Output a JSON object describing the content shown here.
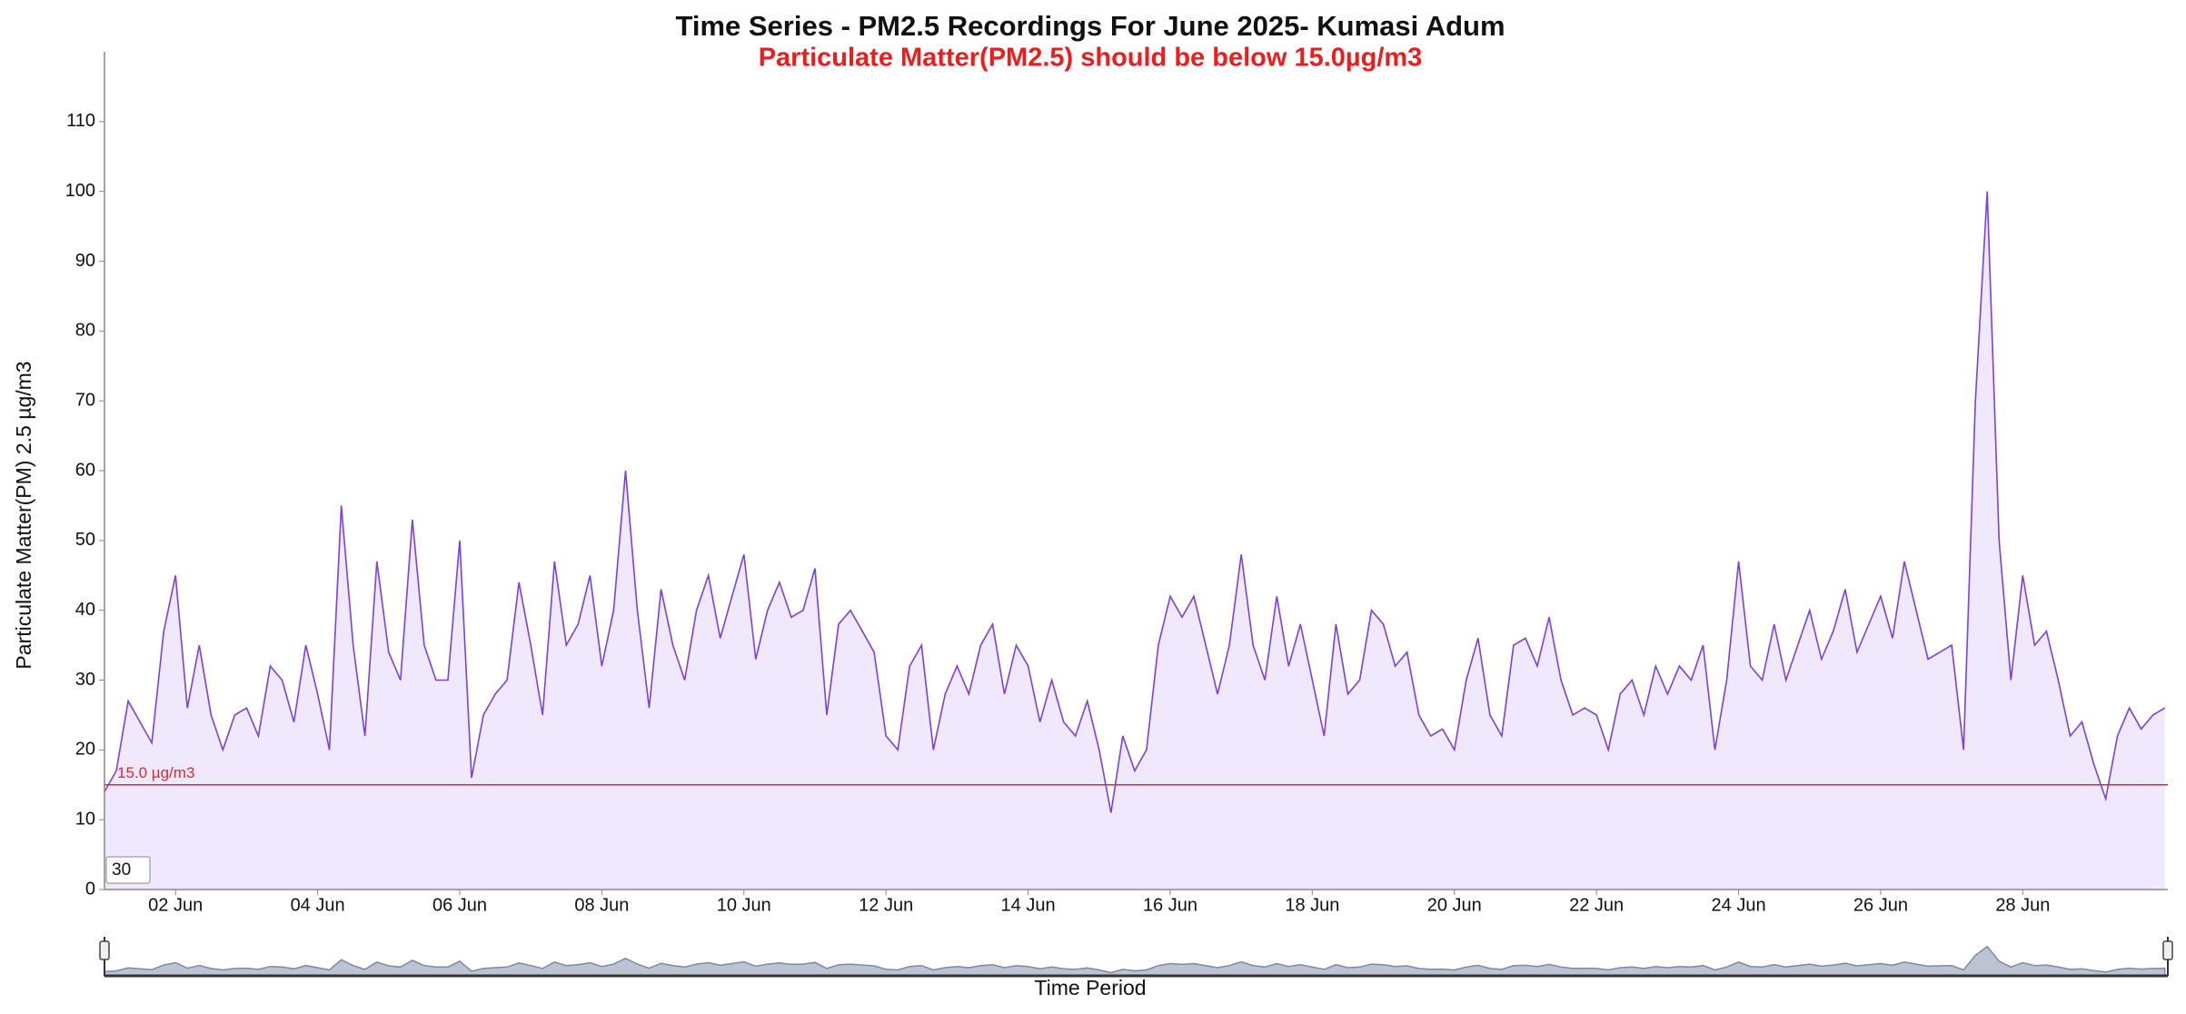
{
  "chart_data": {
    "type": "area",
    "title": "Time Series - PM2.5 Recordings For June 2025- Kumasi Adum",
    "subtitle": "Particulate Matter(PM2.5) should be below 15.0µg/m3",
    "y_label": "Particulate Matter(PM) 2.5 µg/m3",
    "x_label": "Time Period",
    "zoom_input": "30",
    "threshold": 15,
    "threshold_label": "15.0 µg/m3",
    "threshold_color": "#e8242b",
    "xlim": [
      0,
      697
    ],
    "xticks": [
      {
        "value": 24,
        "label": "02 Jun"
      },
      {
        "value": 72,
        "label": "04 Jun"
      },
      {
        "value": 120,
        "label": "06 Jun"
      },
      {
        "value": 168,
        "label": "08 Jun"
      },
      {
        "value": 216,
        "label": "10 Jun"
      },
      {
        "value": 264,
        "label": "12 Jun"
      },
      {
        "value": 312,
        "label": "14 Jun"
      },
      {
        "value": 360,
        "label": "16 Jun"
      },
      {
        "value": 408,
        "label": "18 Jun"
      },
      {
        "value": 456,
        "label": "20 Jun"
      },
      {
        "value": 504,
        "label": "22 Jun"
      },
      {
        "value": 552,
        "label": "24 Jun"
      },
      {
        "value": 600,
        "label": "26 Jun"
      },
      {
        "value": 648,
        "label": "28 Jun"
      }
    ],
    "ylim": [
      0,
      120
    ],
    "yticks": [
      0,
      10,
      20,
      30,
      40,
      50,
      60,
      70,
      80,
      90,
      100,
      110
    ],
    "grid": false,
    "series": [
      {
        "name": "PM2.5",
        "color": "#7b3fe4",
        "fill": "#f0e8fd",
        "x": [
          0,
          4,
          8,
          12,
          16,
          20,
          24,
          28,
          32,
          36,
          40,
          44,
          48,
          52,
          56,
          60,
          64,
          68,
          72,
          76,
          80,
          84,
          88,
          92,
          96,
          100,
          104,
          108,
          112,
          116,
          120,
          124,
          128,
          132,
          136,
          140,
          144,
          148,
          152,
          156,
          160,
          164,
          168,
          172,
          176,
          180,
          184,
          188,
          192,
          196,
          200,
          204,
          208,
          212,
          216,
          220,
          224,
          228,
          232,
          236,
          240,
          244,
          248,
          252,
          256,
          260,
          264,
          268,
          272,
          276,
          280,
          284,
          288,
          292,
          296,
          300,
          304,
          308,
          312,
          316,
          320,
          324,
          328,
          332,
          336,
          340,
          344,
          348,
          352,
          356,
          360,
          364,
          368,
          372,
          376,
          380,
          384,
          388,
          392,
          396,
          400,
          404,
          408,
          412,
          416,
          420,
          424,
          428,
          432,
          436,
          440,
          444,
          448,
          452,
          456,
          460,
          464,
          468,
          472,
          476,
          480,
          484,
          488,
          492,
          496,
          500,
          504,
          508,
          512,
          516,
          520,
          524,
          528,
          532,
          536,
          540,
          544,
          548,
          552,
          556,
          560,
          564,
          568,
          572,
          576,
          580,
          584,
          588,
          592,
          596,
          600,
          604,
          608,
          612,
          616,
          620,
          624,
          628,
          632,
          636,
          640,
          644,
          648,
          652,
          656,
          660,
          664,
          668,
          672,
          676,
          680,
          684,
          688,
          692,
          696
        ],
        "values": [
          14,
          17,
          27,
          24,
          21,
          37,
          45,
          26,
          35,
          25,
          20,
          25,
          26,
          22,
          32,
          30,
          24,
          35,
          28,
          20,
          55,
          35,
          22,
          47,
          34,
          30,
          53,
          35,
          30,
          30,
          50,
          16,
          25,
          28,
          30,
          44,
          35,
          25,
          47,
          35,
          38,
          45,
          32,
          40,
          60,
          40,
          26,
          43,
          35,
          30,
          40,
          45,
          36,
          42,
          48,
          33,
          40,
          44,
          39,
          40,
          46,
          25,
          38,
          40,
          37,
          34,
          22,
          20,
          32,
          35,
          20,
          28,
          32,
          28,
          35,
          38,
          28,
          35,
          32,
          24,
          30,
          24,
          22,
          27,
          20,
          11,
          22,
          17,
          20,
          35,
          42,
          39,
          42,
          35,
          28,
          35,
          48,
          35,
          30,
          42,
          32,
          38,
          30,
          22,
          38,
          28,
          30,
          40,
          38,
          32,
          34,
          25,
          22,
          23,
          20,
          30,
          36,
          25,
          22,
          35,
          36,
          32,
          39,
          30,
          25,
          26,
          25,
          20,
          28,
          30,
          25,
          32,
          28,
          32,
          30,
          35,
          20,
          30,
          47,
          32,
          30,
          38,
          30,
          35,
          40,
          33,
          37,
          43,
          34,
          38,
          42,
          36,
          47,
          40,
          33,
          34,
          35,
          20,
          70,
          100,
          50,
          30,
          45,
          35,
          37,
          30,
          22,
          24,
          18,
          13,
          22,
          26,
          23,
          25,
          26
        ]
      }
    ]
  }
}
